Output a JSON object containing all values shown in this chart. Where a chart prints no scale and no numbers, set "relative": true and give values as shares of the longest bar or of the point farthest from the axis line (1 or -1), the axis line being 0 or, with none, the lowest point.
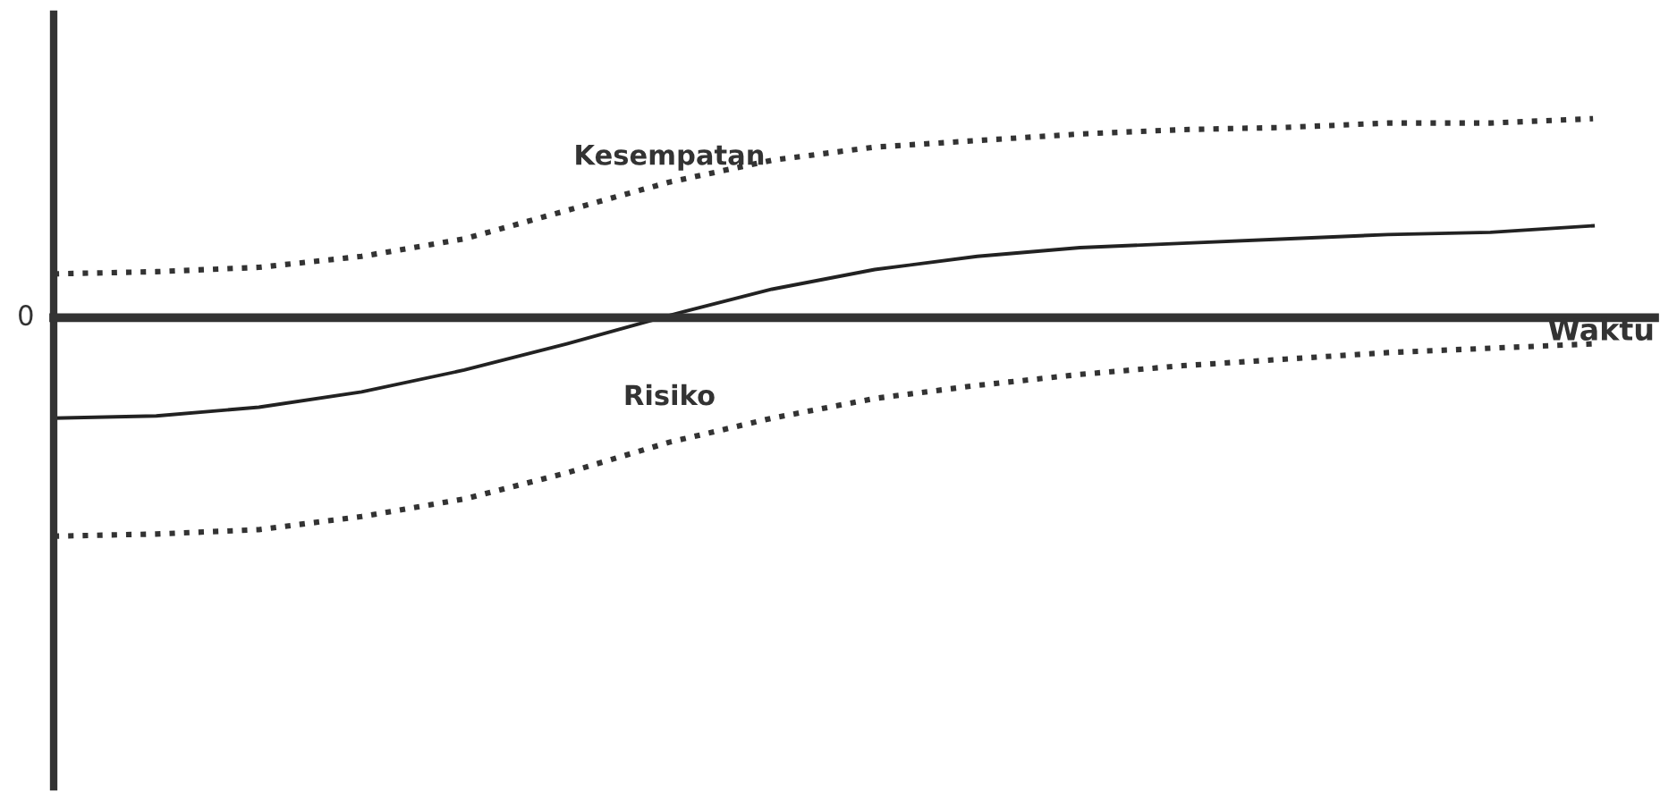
{
  "chart_data": {
    "type": "line",
    "relative": true,
    "xlabel": "Waktu",
    "annotations": [
      "0"
    ],
    "legend": false,
    "marker": "none",
    "categories": [
      null,
      null,
      null,
      null,
      null,
      null,
      null,
      null,
      null,
      null,
      null,
      null,
      null,
      null,
      null,
      null
    ],
    "series": [
      {
        "name": "Kesempatan",
        "color": "#333333",
        "line_style": "dotted",
        "values": [
          0.2,
          0.21,
          0.23,
          0.28,
          0.36,
          0.49,
          0.62,
          0.72,
          0.78,
          0.81,
          0.84,
          0.86,
          0.87,
          0.89,
          0.89,
          0.91
        ]
      },
      {
        "color": "#222222",
        "line_style": "solid",
        "values": [
          -0.46,
          -0.45,
          -0.41,
          -0.34,
          -0.24,
          -0.12,
          0.01,
          0.13,
          0.22,
          0.28,
          0.32,
          0.34,
          0.36,
          0.38,
          0.39,
          0.42
        ]
      },
      {
        "name": "Risiko",
        "color": "#333333",
        "line_style": "dotted",
        "values": [
          -1.0,
          -0.99,
          -0.97,
          -0.91,
          -0.83,
          -0.71,
          -0.57,
          -0.46,
          -0.37,
          -0.31,
          -0.26,
          -0.22,
          -0.19,
          -0.16,
          -0.14,
          -0.12
        ]
      }
    ]
  }
}
